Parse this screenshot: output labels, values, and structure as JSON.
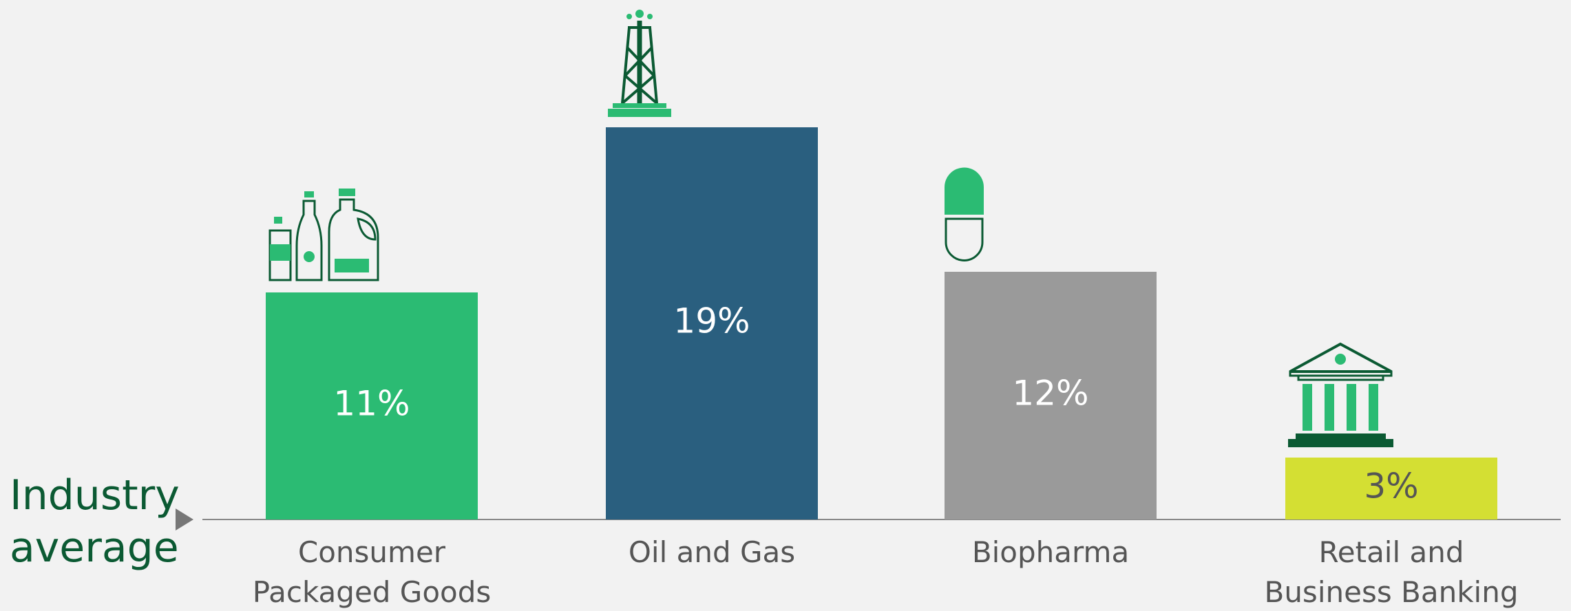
{
  "chart_data": {
    "type": "bar",
    "annotation": {
      "lines": [
        "Industry",
        "average"
      ]
    },
    "categories": [
      "Consumer Packaged Goods",
      "Oil and Gas",
      "Biopharma",
      "Retail and Business Banking"
    ],
    "values": [
      11,
      19,
      12,
      3
    ],
    "value_labels": [
      "11%",
      "19%",
      "12%",
      "3%"
    ],
    "colors": [
      "#2bbb73",
      "#2a5f7f",
      "#9a9a9a",
      "#d4df33"
    ],
    "value_label_colors": [
      "#ffffff",
      "#ffffff",
      "#ffffff",
      "#555555"
    ]
  }
}
